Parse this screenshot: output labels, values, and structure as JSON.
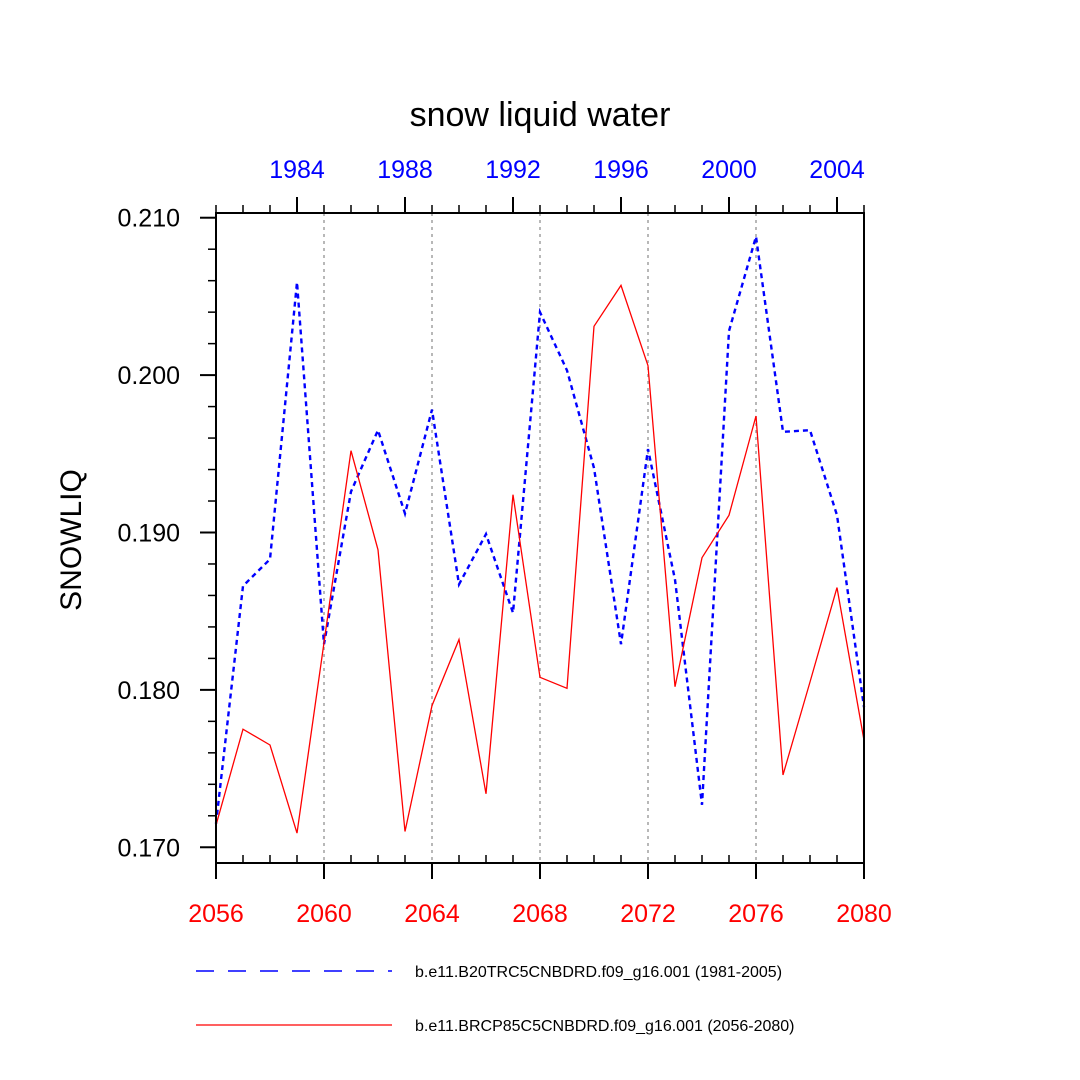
{
  "chart_data": {
    "type": "line",
    "title": "snow liquid water",
    "ylabel": "SNOWLIQ",
    "xlabel": "",
    "ylim": [
      0.169,
      0.2103
    ],
    "xlim": [
      2056,
      2080
    ],
    "yticks": [
      0.17,
      0.18,
      0.19,
      0.2,
      0.21
    ],
    "ytick_labels": [
      "0.170",
      "0.180",
      "0.190",
      "0.200",
      "0.210"
    ],
    "x_bottom_ticks": [
      "2056",
      "2060",
      "2064",
      "2068",
      "2072",
      "2076",
      "2080"
    ],
    "x_bottom_tick_values": [
      2056,
      2060,
      2064,
      2068,
      2072,
      2076,
      2080
    ],
    "x_top_ticks": [
      "1984",
      "1988",
      "1992",
      "1996",
      "2000",
      "2004"
    ],
    "x_top_tick_values": [
      1984,
      1988,
      1992,
      1996,
      2000,
      2004
    ],
    "x_top_range": [
      1981,
      2005
    ],
    "grid": "dotted vertical lines at bottom-axis major ticks",
    "legend_position": "bottom",
    "colors": {
      "historical": "#0000ff",
      "future": "#ff0000",
      "grid": "#a0a0a0",
      "axis": "#000000"
    },
    "series": [
      {
        "name": "b.e11.B20TRC5CNBDRD.f09_g16.001 (1981-2005)",
        "axis": "top",
        "style": "dashed",
        "color": "#0000ff",
        "x": [
          1981,
          1982,
          1983,
          1984,
          1985,
          1986,
          1987,
          1988,
          1989,
          1990,
          1991,
          1992,
          1993,
          1994,
          1995,
          1996,
          1997,
          1998,
          1999,
          2000,
          2001,
          2002,
          2003,
          2004,
          2005
        ],
        "values": [
          0.1715,
          0.1866,
          0.1883,
          0.2059,
          0.1829,
          0.1926,
          0.1965,
          0.1912,
          0.1978,
          0.1867,
          0.1899,
          0.1849,
          0.204,
          0.2003,
          0.1941,
          0.1829,
          0.1953,
          0.187,
          0.1727,
          0.2028,
          0.2088,
          0.1964,
          0.1965,
          0.1911,
          0.1789
        ]
      },
      {
        "name": "b.e11.BRCP85C5CNBDRD.f09_g16.001 (2056-2080)",
        "axis": "bottom",
        "style": "solid",
        "color": "#ff0000",
        "x": [
          2056,
          2057,
          2058,
          2059,
          2060,
          2061,
          2062,
          2063,
          2064,
          2065,
          2066,
          2067,
          2068,
          2069,
          2070,
          2071,
          2072,
          2073,
          2074,
          2075,
          2076,
          2077,
          2078,
          2079,
          2080
        ],
        "values": [
          0.1714,
          0.1775,
          0.1765,
          0.1709,
          0.183,
          0.1952,
          0.1889,
          0.171,
          0.179,
          0.1832,
          0.1734,
          0.1924,
          0.1808,
          0.1801,
          0.2031,
          0.2057,
          0.2006,
          0.1802,
          0.1884,
          0.1911,
          0.1974,
          0.1746,
          0.1805,
          0.1865,
          0.1768
        ]
      }
    ]
  }
}
